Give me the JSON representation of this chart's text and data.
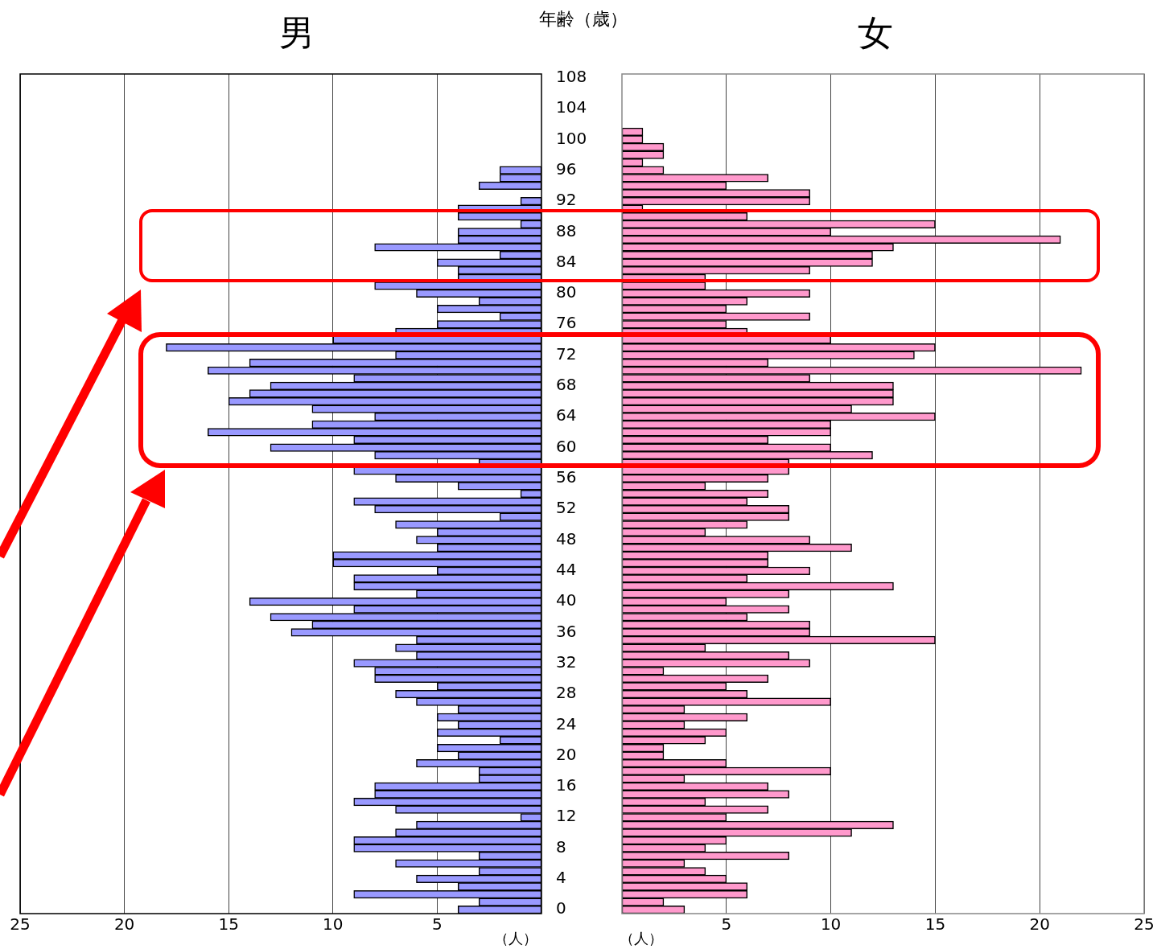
{
  "chart_data": [
    {
      "type": "bar",
      "orientation": "horizontal",
      "title": "男",
      "xlabel": "（人）",
      "ylabel": "年齢（歳）",
      "categories": [
        "108",
        null,
        null,
        null,
        "104",
        null,
        null,
        null,
        "100",
        null,
        null,
        null,
        "96",
        null,
        null,
        null,
        "92",
        null,
        null,
        null,
        "88",
        null,
        null,
        null,
        "84",
        null,
        null,
        null,
        "80",
        null,
        null,
        null,
        "76",
        null,
        null,
        null,
        "72",
        null,
        null,
        null,
        "68",
        null,
        null,
        null,
        "64",
        null,
        null,
        null,
        "60",
        null,
        null,
        null,
        "56",
        null,
        null,
        null,
        "52",
        null,
        null,
        null,
        "48",
        null,
        null,
        null,
        "44",
        null,
        null,
        null,
        "40",
        null,
        null,
        null,
        "36",
        null,
        null,
        null,
        "32",
        null,
        null,
        null,
        "28",
        null,
        null,
        null,
        "24",
        null,
        null,
        null,
        "20",
        null,
        null,
        null,
        "16",
        null,
        null,
        null,
        "12",
        null,
        null,
        null,
        "8",
        null,
        null,
        null,
        "4",
        null,
        null,
        null,
        "0"
      ],
      "series": [
        {
          "color": "#9999ff",
          "values": [
            0,
            0,
            0,
            0,
            0,
            0,
            0,
            0,
            0,
            0,
            0,
            0,
            2,
            2,
            3,
            0,
            1,
            4,
            4,
            1,
            4,
            4,
            8,
            2,
            5,
            4,
            4,
            8,
            6,
            3,
            5,
            2,
            5,
            7,
            10,
            18,
            7,
            14,
            16,
            9,
            13,
            14,
            15,
            11,
            8,
            11,
            16,
            9,
            13,
            8,
            3,
            9,
            7,
            4,
            1,
            9,
            8,
            2,
            7,
            5,
            6,
            5,
            10,
            10,
            5,
            9,
            9,
            6,
            14,
            9,
            13,
            11,
            12,
            6,
            7,
            6,
            9,
            8,
            8,
            5,
            7,
            6,
            4,
            5,
            4,
            5,
            2,
            5,
            4,
            6,
            3,
            3,
            8,
            8,
            9,
            7,
            1,
            6,
            7,
            9,
            9,
            3,
            7,
            3,
            6,
            4,
            9,
            3,
            4
          ]
        }
      ],
      "xlim": [
        25,
        0
      ],
      "xticks": [
        25,
        20,
        15,
        10,
        5
      ],
      "grid": "x"
    },
    {
      "type": "bar",
      "orientation": "horizontal",
      "title": "女",
      "xlabel": "（人）",
      "categories": [
        "108",
        null,
        null,
        null,
        "104",
        null,
        null,
        null,
        "100",
        null,
        null,
        null,
        "96",
        null,
        null,
        null,
        "92",
        null,
        null,
        null,
        "88",
        null,
        null,
        null,
        "84",
        null,
        null,
        null,
        "80",
        null,
        null,
        null,
        "76",
        null,
        null,
        null,
        "72",
        null,
        null,
        null,
        "68",
        null,
        null,
        null,
        "64",
        null,
        null,
        null,
        "60",
        null,
        null,
        null,
        "56",
        null,
        null,
        null,
        "52",
        null,
        null,
        null,
        "48",
        null,
        null,
        null,
        "44",
        null,
        null,
        null,
        "40",
        null,
        null,
        null,
        "36",
        null,
        null,
        null,
        "32",
        null,
        null,
        null,
        "28",
        null,
        null,
        null,
        "24",
        null,
        null,
        null,
        "20",
        null,
        null,
        null,
        "16",
        null,
        null,
        null,
        "12",
        null,
        null,
        null,
        "8",
        null,
        null,
        null,
        "4",
        null,
        null,
        null,
        "0"
      ],
      "series": [
        {
          "color": "#ff99cc",
          "values": [
            0,
            0,
            0,
            0,
            0,
            0,
            0,
            1,
            1,
            2,
            2,
            1,
            2,
            7,
            5,
            9,
            9,
            1,
            6,
            15,
            10,
            21,
            13,
            12,
            12,
            9,
            4,
            4,
            9,
            6,
            5,
            9,
            5,
            6,
            10,
            15,
            14,
            7,
            22,
            9,
            13,
            13,
            13,
            11,
            15,
            10,
            10,
            7,
            10,
            12,
            8,
            8,
            7,
            4,
            7,
            6,
            8,
            8,
            6,
            4,
            9,
            11,
            7,
            7,
            9,
            6,
            13,
            8,
            5,
            8,
            6,
            9,
            9,
            15,
            4,
            8,
            9,
            2,
            7,
            5,
            6,
            10,
            3,
            6,
            3,
            5,
            4,
            2,
            2,
            5,
            10,
            3,
            7,
            8,
            4,
            7,
            5,
            13,
            11,
            5,
            4,
            8,
            3,
            4,
            5,
            6,
            6,
            2,
            3
          ]
        }
      ],
      "xlim": [
        0,
        25
      ],
      "xticks": [
        5,
        10,
        15,
        20,
        25
      ],
      "grid": "x",
      "tick_labels": "x"
    }
  ]
}
